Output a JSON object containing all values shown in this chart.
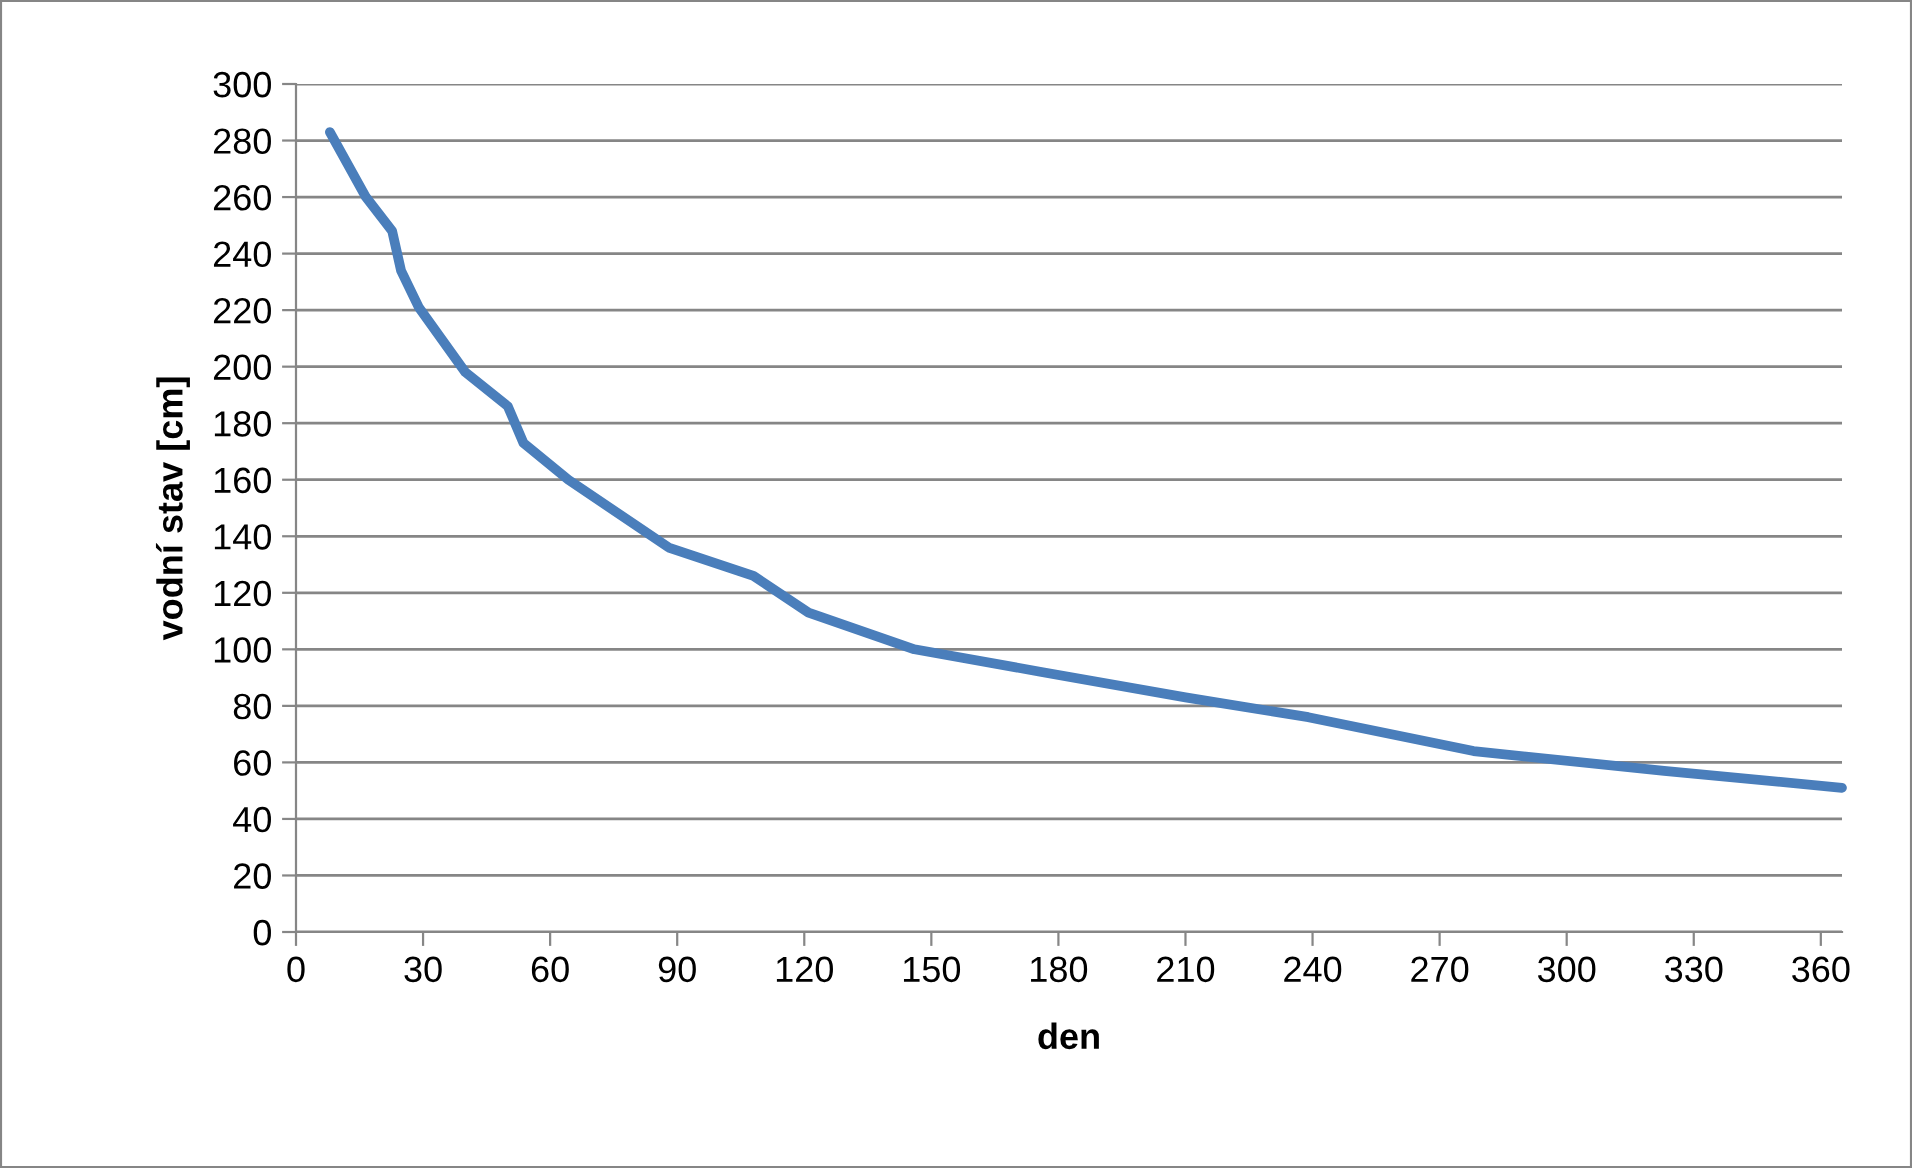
{
  "chart_data": {
    "type": "line",
    "xlabel": "den",
    "ylabel": "vodní stav [cm]",
    "x": [
      8,
      16.5,
      22.7,
      24.8,
      29,
      40,
      50,
      53.7,
      64.3,
      88,
      108,
      121,
      146,
      176,
      210,
      239,
      278,
      323,
      365
    ],
    "series": [
      {
        "color": "#4a7ebb",
        "values": [
          283,
          260,
          248,
          234,
          221,
          198,
          186,
          173,
          160,
          136,
          126,
          113,
          100,
          92,
          83,
          76,
          64,
          57,
          51
        ]
      }
    ],
    "xlim": [
      0,
      365
    ],
    "xticks": [
      0,
      30,
      60,
      90,
      120,
      150,
      180,
      210,
      240,
      270,
      300,
      330,
      360
    ],
    "ylim": [
      0,
      300
    ],
    "yticks": [
      0,
      20,
      40,
      60,
      80,
      100,
      120,
      140,
      160,
      180,
      200,
      220,
      240,
      260,
      280,
      300
    ],
    "grid": "y",
    "marker": "none",
    "line_style": "solid"
  }
}
